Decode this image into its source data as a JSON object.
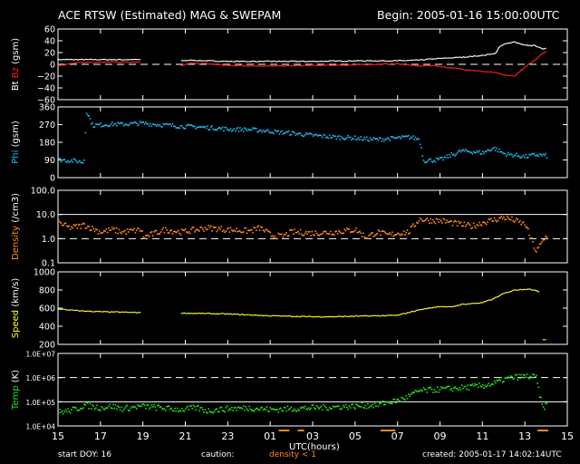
{
  "header": {
    "title": "ACE RTSW (Estimated) MAG & SWEPAM",
    "begin": "Begin: 2005-01-16 15:00:00UTC"
  },
  "footer": {
    "start_doy": "start DOY:  16",
    "caution": "caution:",
    "caution_density": "density < 1",
    "created": "created: 2005-01-17 14:02:14UTC"
  },
  "colors": {
    "background": "#000000",
    "axes": "#ffffff",
    "bt": "#ffffff",
    "bz": "#ff2020",
    "phi": "#22b8e6",
    "density": "#ff8c1a",
    "speed": "#ffff33",
    "temp": "#22e022",
    "caution_marks": "#ff8c1a"
  },
  "chart_data": [
    {
      "type": "line",
      "ylabel": [
        "Bt",
        "Bz",
        "(gsm)"
      ],
      "ylim": [
        -60,
        60
      ],
      "yticks": [
        "60",
        "40",
        "20",
        "0",
        "−20",
        "−40",
        "−60"
      ],
      "tick_values": [
        60,
        40,
        20,
        0,
        -20,
        -40,
        -60
      ],
      "scale": "linear",
      "reflines": [
        {
          "value": 0,
          "style": "dashed"
        }
      ],
      "series": [
        {
          "name": "Bt",
          "color_key": "bt",
          "x": [
            0,
            1,
            2,
            3,
            3.9,
            5.8,
            6.2,
            7,
            8,
            10,
            12,
            14,
            16,
            17,
            17.6,
            19,
            20,
            20.6,
            20.7,
            20.8,
            21,
            21.5,
            22,
            22.5,
            22.8,
            23
          ],
          "values": [
            8,
            8,
            8,
            8,
            8,
            6,
            7,
            6,
            5,
            5,
            5,
            6,
            6,
            7,
            9,
            12,
            15,
            18,
            24,
            30,
            34,
            38,
            32,
            32,
            26,
            28
          ],
          "gaps_after": [
            3.9
          ]
        },
        {
          "name": "Bz",
          "color_key": "bz",
          "x": [
            0,
            1,
            2,
            3,
            3.9,
            5.8,
            6.2,
            7,
            8,
            10,
            12,
            14,
            16,
            17,
            17.6,
            19,
            20,
            20.6,
            20.8,
            21,
            21.5,
            21.7,
            22,
            22.5,
            22.8,
            23
          ],
          "values": [
            -2,
            3,
            4,
            4,
            3,
            -3,
            2,
            1,
            -2,
            -3,
            -2,
            -1,
            1,
            -3,
            -2,
            -8,
            -12,
            -14,
            -16,
            -18,
            -20,
            -14,
            -5,
            8,
            18,
            22
          ],
          "gaps_after": [
            3.9
          ]
        }
      ]
    },
    {
      "type": "scatter",
      "ylabel": [
        "Phi",
        "(gsm)"
      ],
      "ylim": [
        0,
        360
      ],
      "yticks": [
        "360",
        "270",
        "180",
        "90",
        "0"
      ],
      "tick_values": [
        360,
        270,
        180,
        90,
        0
      ],
      "scale": "linear",
      "series": [
        {
          "name": "Phi",
          "color_key": "phi",
          "x": [
            0,
            0.8,
            1.2,
            1.3,
            1.6,
            2,
            2.5,
            3,
            3.5,
            3.9,
            5.8,
            6.5,
            7.5,
            8,
            9,
            10,
            10.3,
            11,
            12,
            13,
            14,
            14.5,
            15,
            16,
            16.5,
            17,
            17.2,
            18,
            19,
            20,
            20.5,
            21,
            22,
            22.5,
            23
          ],
          "values": [
            95,
            88,
            82,
            345,
            270,
            272,
            276,
            275,
            278,
            280,
            265,
            262,
            255,
            250,
            248,
            240,
            235,
            230,
            218,
            210,
            205,
            200,
            198,
            205,
            210,
            200,
            90,
            95,
            140,
            130,
            155,
            125,
            110,
            120,
            115
          ]
        }
      ]
    },
    {
      "type": "scatter",
      "ylabel": [
        "Density",
        "(/cm3)"
      ],
      "ylim": [
        0.1,
        100
      ],
      "yticks": [
        "100.0",
        "10.0",
        "1.0",
        "0.1"
      ],
      "tick_values": [
        100,
        10,
        1,
        0.1
      ],
      "scale": "log",
      "reflines": [
        {
          "value": 10,
          "style": "solid"
        },
        {
          "value": 1,
          "style": "dashed"
        }
      ],
      "series": [
        {
          "name": "Density",
          "color_key": "density",
          "x": [
            0,
            0.5,
            1,
            1.2,
            1.5,
            2,
            2.5,
            3,
            3.9,
            4,
            5,
            5.8,
            6.5,
            7,
            8,
            9,
            9.5,
            10,
            10.5,
            11,
            12,
            13,
            14,
            14.5,
            15,
            15.5,
            16,
            16.5,
            17,
            17.5,
            18,
            19,
            19.5,
            20,
            21,
            21.5,
            22,
            22.5,
            23
          ],
          "values": [
            5,
            3,
            3.5,
            4,
            3,
            2,
            2.5,
            2,
            2.5,
            1.2,
            2.5,
            2,
            2.5,
            3,
            2.5,
            2.2,
            3,
            1.5,
            1.3,
            2,
            1.8,
            2,
            2.5,
            1.2,
            2,
            1.5,
            1.8,
            2,
            7,
            6,
            6,
            4,
            3.5,
            5,
            8,
            6,
            4,
            0.3,
            1.5
          ]
        }
      ]
    },
    {
      "type": "line",
      "ylabel": [
        "Speed",
        "(km/s)"
      ],
      "ylim": [
        200,
        1000
      ],
      "yticks": [
        "1000",
        "800",
        "600",
        "400",
        "200"
      ],
      "tick_values": [
        1000,
        800,
        600,
        400,
        200
      ],
      "scale": "linear",
      "series": [
        {
          "name": "Speed",
          "color_key": "speed",
          "x": [
            0,
            1,
            2,
            3,
            3.9,
            5.8,
            7,
            8,
            9,
            10,
            11,
            12,
            13,
            14,
            15,
            16,
            17,
            18,
            18.5,
            19,
            20,
            20.5,
            21,
            21.5,
            22,
            22.5,
            22.7,
            22.8,
            23
          ],
          "values": [
            590,
            570,
            560,
            555,
            550,
            545,
            540,
            535,
            525,
            515,
            510,
            505,
            505,
            510,
            515,
            520,
            580,
            620,
            610,
            640,
            660,
            700,
            760,
            800,
            810,
            800,
            780,
            250,
            255
          ],
          "gaps_after": [
            3.9,
            22.7
          ]
        }
      ]
    },
    {
      "type": "scatter",
      "ylabel": [
        "Temp",
        "(K)"
      ],
      "ylim": [
        10000,
        10000000
      ],
      "yticks": [
        "1.0E+07",
        "1.0E+06",
        "1.0E+05",
        "1.0E+04"
      ],
      "tick_values": [
        10000000,
        1000000,
        100000,
        10000
      ],
      "scale": "log",
      "reflines": [
        {
          "value": 1000000,
          "style": "dashed"
        },
        {
          "value": 100000,
          "style": "solid"
        }
      ],
      "series": [
        {
          "name": "Temp",
          "color_key": "temp",
          "x": [
            0,
            0.5,
            1,
            1.2,
            1.5,
            2,
            2.5,
            3,
            3.9,
            5.8,
            6.5,
            7,
            8,
            9,
            10,
            11,
            12,
            13,
            14,
            15,
            15.5,
            16,
            16.5,
            17,
            18,
            19,
            20,
            20.5,
            21,
            21.5,
            22,
            22.5,
            22.8,
            23
          ],
          "values": [
            40000,
            45000,
            60000,
            80000,
            70000,
            60000,
            70000,
            55000,
            70000,
            50000,
            60000,
            45000,
            55000,
            60000,
            50000,
            55000,
            60000,
            65000,
            70000,
            80000,
            100000,
            120000,
            180000,
            300000,
            350000,
            400000,
            500000,
            600000,
            900000,
            1100000,
            1200000,
            1100000,
            60000,
            80000
          ]
        }
      ]
    }
  ],
  "x_axis": {
    "label": "UTC(hours)",
    "ticks": [
      "15",
      "17",
      "19",
      "21",
      "23",
      "01",
      "03",
      "05",
      "07",
      "09",
      "11",
      "13",
      "15"
    ],
    "tick_hours": [
      0,
      2,
      4,
      6,
      8,
      10,
      12,
      14,
      16,
      18,
      20,
      22,
      24
    ],
    "range": [
      0,
      24
    ]
  },
  "caution_intervals": [
    [
      10.4,
      10.9
    ],
    [
      11.3,
      11.6
    ],
    [
      15.2,
      15.9
    ],
    [
      22.6,
      23.1
    ]
  ]
}
